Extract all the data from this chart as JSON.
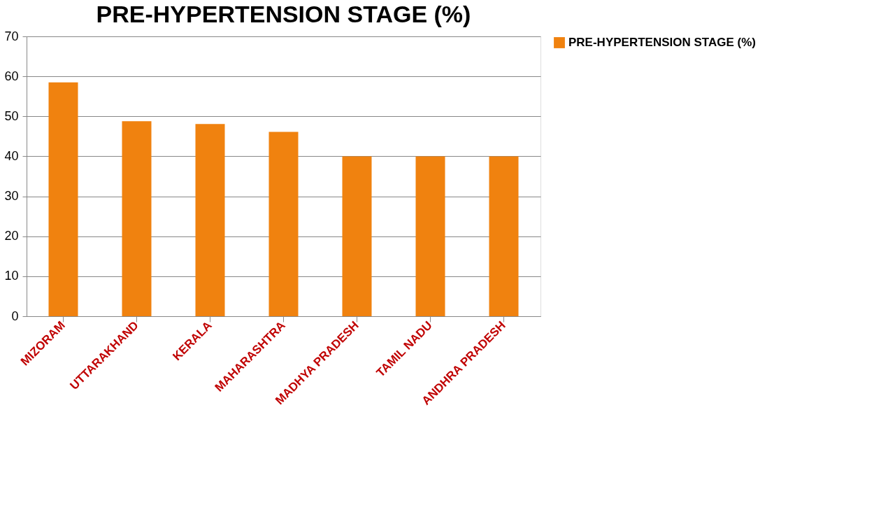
{
  "chart_data": {
    "type": "bar",
    "title": "PRE-HYPERTENSION STAGE (%)",
    "categories": [
      "MIZORAM",
      "UTTARAKHAND",
      "KERALA",
      "MAHARASHTRA",
      "MADHYA PRADESH",
      "TAMIL NADU",
      "ANDHRA PRADESH"
    ],
    "series": [
      {
        "name": "PRE-HYPERTENSION STAGE (%)",
        "color": "#f0820f",
        "values": [
          58.5,
          48.8,
          48.1,
          46.1,
          40,
          40,
          40
        ]
      }
    ],
    "ylim": [
      0,
      70
    ],
    "yticks": [
      0,
      10,
      20,
      30,
      40,
      50,
      60,
      70
    ],
    "grid": "y",
    "legend": "right"
  }
}
